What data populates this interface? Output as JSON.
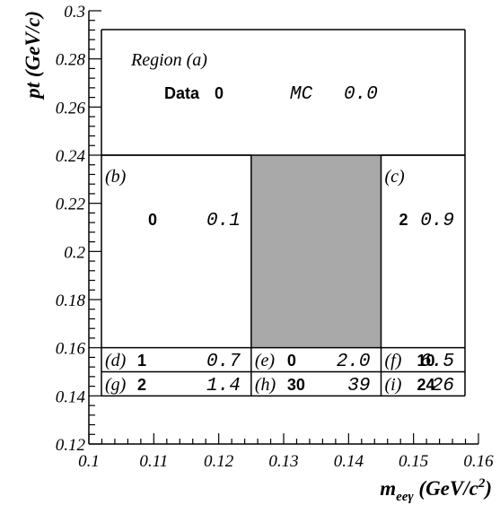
{
  "chart_data": {
    "type": "table",
    "xlabel": {
      "main": "m",
      "sub": "eeγ",
      "unit_open": " (GeV/c",
      "unit_sup": "2",
      "unit_close": ")"
    },
    "ylabel": "pt (GeV/c)",
    "xlim": [
      0.1,
      0.16
    ],
    "ylim": [
      0.12,
      0.3
    ],
    "xticks": [
      "0.1",
      "0.11",
      "0.12",
      "0.13",
      "0.14",
      "0.15",
      "0.16"
    ],
    "yticks": [
      "0.12",
      "0.14",
      "0.16",
      "0.18",
      "0.2",
      "0.22",
      "0.24",
      "0.26",
      "0.28",
      "0.3"
    ],
    "signal_box": {
      "x": [
        0.125,
        0.145
      ],
      "y": [
        0.16,
        0.24
      ],
      "color": "#a9a9a9"
    },
    "data_label": "Data",
    "mc_label": "MC",
    "regions": [
      {
        "id": "a",
        "label": "Region (a)",
        "x": [
          0.1,
          0.16
        ],
        "y": [
          0.24,
          0.3
        ],
        "data": "0",
        "mc": "0.0"
      },
      {
        "id": "b",
        "label": "(b)",
        "x": [
          0.1,
          0.125
        ],
        "y": [
          0.16,
          0.24
        ],
        "data": "0",
        "mc": "0.1"
      },
      {
        "id": "c",
        "label": "(c)",
        "x": [
          0.145,
          0.16
        ],
        "y": [
          0.16,
          0.24
        ],
        "data": "2",
        "mc": "0.9"
      },
      {
        "id": "d",
        "label": "(d)",
        "x": [
          0.1,
          0.125
        ],
        "y": [
          0.15,
          0.16
        ],
        "data": "1",
        "mc": "0.7"
      },
      {
        "id": "e",
        "label": "(e)",
        "x": [
          0.125,
          0.145
        ],
        "y": [
          0.15,
          0.16
        ],
        "data": "0",
        "mc": "2.0"
      },
      {
        "id": "f",
        "label": "(f)",
        "x": [
          0.145,
          0.16
        ],
        "y": [
          0.15,
          0.16
        ],
        "data": "10",
        "mc": "6.5"
      },
      {
        "id": "g",
        "label": "(g)",
        "x": [
          0.1,
          0.125
        ],
        "y": [
          0.14,
          0.15
        ],
        "data": "2",
        "mc": "1.4"
      },
      {
        "id": "h",
        "label": "(h)",
        "x": [
          0.125,
          0.145
        ],
        "y": [
          0.14,
          0.15
        ],
        "data": "30",
        "mc": "39"
      },
      {
        "id": "i",
        "label": "(i)",
        "x": [
          0.145,
          0.16
        ],
        "y": [
          0.14,
          0.15
        ],
        "data": "24",
        "mc": "26"
      }
    ]
  }
}
